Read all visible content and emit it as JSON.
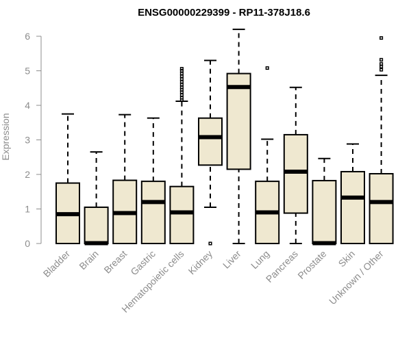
{
  "chart_data": {
    "type": "boxplot",
    "title": "ENSG00000229399 - RP11-378J18.6",
    "xlabel": "",
    "ylabel": "Expression",
    "ylim": [
      0,
      6
    ],
    "yticks": [
      0,
      1,
      2,
      3,
      4,
      5,
      6
    ],
    "box_color": "#efe8d0",
    "categories": [
      "Bladder",
      "Brain",
      "Breast",
      "Gastric",
      "Hematopoietic cells",
      "Kidney",
      "Liver",
      "Lung",
      "Pancreas",
      "Prostate",
      "Skin",
      "Unknown / Other"
    ],
    "series": [
      {
        "name": "Bladder",
        "min": 0,
        "q1": 0,
        "median": 0.85,
        "q3": 1.75,
        "max": 3.75,
        "outliers": []
      },
      {
        "name": "Brain",
        "min": 0,
        "q1": 0,
        "median": 0.01,
        "q3": 1.05,
        "max": 2.65,
        "outliers": []
      },
      {
        "name": "Breast",
        "min": 0,
        "q1": 0,
        "median": 0.88,
        "q3": 1.83,
        "max": 3.73,
        "outliers": []
      },
      {
        "name": "Gastric",
        "min": 0,
        "q1": 0,
        "median": 1.2,
        "q3": 1.8,
        "max": 3.63,
        "outliers": []
      },
      {
        "name": "Hematopoietic cells",
        "min": 0,
        "q1": 0,
        "median": 0.9,
        "q3": 1.65,
        "max": 4.12,
        "outliers": [
          4.15,
          4.22,
          4.3,
          4.38,
          4.45,
          4.52,
          4.6,
          4.68,
          4.76,
          4.84,
          4.92,
          5.0,
          5.06
        ]
      },
      {
        "name": "Kidney",
        "min": 1.05,
        "q1": 2.27,
        "median": 3.08,
        "q3": 3.63,
        "max": 5.3,
        "outliers": [
          0.0
        ]
      },
      {
        "name": "Liver",
        "min": 0,
        "q1": 2.15,
        "median": 4.53,
        "q3": 4.92,
        "max": 6.2,
        "outliers": []
      },
      {
        "name": "Lung",
        "min": 0,
        "q1": 0,
        "median": 0.9,
        "q3": 1.8,
        "max": 3.02,
        "outliers": [
          5.08
        ]
      },
      {
        "name": "Pancreas",
        "min": 0,
        "q1": 0.88,
        "median": 2.08,
        "q3": 3.15,
        "max": 4.52,
        "outliers": []
      },
      {
        "name": "Prostate",
        "min": 0,
        "q1": 0,
        "median": 0.01,
        "q3": 1.82,
        "max": 2.46,
        "outliers": []
      },
      {
        "name": "Skin",
        "min": 0,
        "q1": 0,
        "median": 1.33,
        "q3": 2.08,
        "max": 2.88,
        "outliers": []
      },
      {
        "name": "Unknown / Other",
        "min": 0,
        "q1": 0,
        "median": 1.2,
        "q3": 2.02,
        "max": 4.87,
        "outliers": [
          5.03,
          5.12,
          5.2,
          5.32,
          5.95
        ]
      }
    ]
  }
}
